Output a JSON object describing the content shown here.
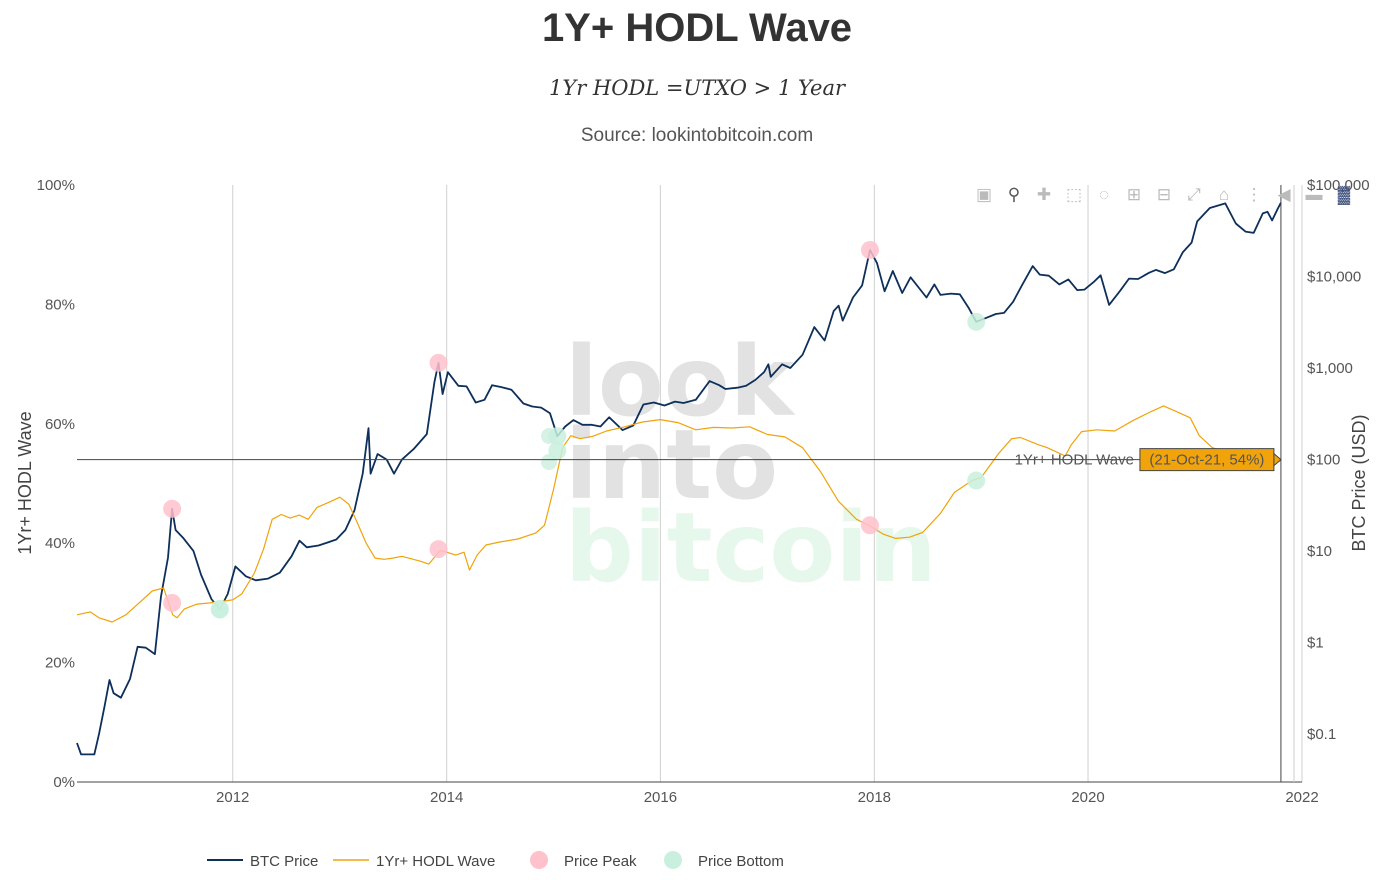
{
  "chart_data": {
    "type": "line",
    "title": "1Y+ HODL Wave",
    "subtitle": "1Yr HODL =UTXO > 1 Year",
    "source": "Source: lookintobitcoin.com",
    "y_left": {
      "title": "1Yr+ HODL Wave",
      "range": [
        0,
        100
      ],
      "ticks": [
        "0%",
        "20%",
        "40%",
        "60%",
        "80%",
        "100%"
      ]
    },
    "y_right": {
      "title": "BTC Price (USD)",
      "scale": "log",
      "range": [
        0.03,
        100000
      ],
      "ticks": [
        "$0.1",
        "$1",
        "$10",
        "$100",
        "$1,000",
        "$10,000",
        "$100,000"
      ]
    },
    "x": {
      "range": [
        "2010-07-18",
        "2022-01-01"
      ],
      "ticks": [
        "2012",
        "2014",
        "2016",
        "2018",
        "2020",
        "2022"
      ]
    },
    "grid": "x-only",
    "legend_position": "bottom-left",
    "series": [
      {
        "name": "BTC Price",
        "axis": "right",
        "color": "#0d2f5a",
        "points": [
          [
            "2010-07-18",
            0.08
          ],
          [
            "2010-08-01",
            0.06
          ],
          [
            "2010-09-15",
            0.06
          ],
          [
            "2010-10-01",
            0.1
          ],
          [
            "2010-10-20",
            0.2
          ],
          [
            "2010-11-06",
            0.39
          ],
          [
            "2010-11-20",
            0.28
          ],
          [
            "2010-12-15",
            0.25
          ],
          [
            "2011-01-15",
            0.4
          ],
          [
            "2011-02-10",
            0.9
          ],
          [
            "2011-03-10",
            0.88
          ],
          [
            "2011-04-10",
            0.75
          ],
          [
            "2011-05-01",
            3.2
          ],
          [
            "2011-05-25",
            8.5
          ],
          [
            "2011-06-08",
            29
          ],
          [
            "2011-06-20",
            17
          ],
          [
            "2011-07-15",
            14
          ],
          [
            "2011-08-20",
            10
          ],
          [
            "2011-09-15",
            5.5
          ],
          [
            "2011-10-20",
            3.0
          ],
          [
            "2011-11-18",
            2.3
          ],
          [
            "2011-12-15",
            3.4
          ],
          [
            "2012-01-10",
            6.8
          ],
          [
            "2012-02-15",
            5.3
          ],
          [
            "2012-03-20",
            4.8
          ],
          [
            "2012-05-01",
            5.0
          ],
          [
            "2012-06-10",
            5.8
          ],
          [
            "2012-07-20",
            8.8
          ],
          [
            "2012-08-16",
            13
          ],
          [
            "2012-09-10",
            11
          ],
          [
            "2012-10-20",
            11.5
          ],
          [
            "2012-11-20",
            12.4
          ],
          [
            "2012-12-20",
            13.4
          ],
          [
            "2013-01-20",
            17
          ],
          [
            "2013-02-20",
            28
          ],
          [
            "2013-03-20",
            70
          ],
          [
            "2013-04-09",
            220
          ],
          [
            "2013-04-16",
            70
          ],
          [
            "2013-05-10",
            115
          ],
          [
            "2013-06-10",
            100
          ],
          [
            "2013-07-05",
            70
          ],
          [
            "2013-08-01",
            100
          ],
          [
            "2013-09-10",
            130
          ],
          [
            "2013-10-25",
            190
          ],
          [
            "2013-11-20",
            700
          ],
          [
            "2013-12-04",
            1140
          ],
          [
            "2013-12-18",
            520
          ],
          [
            "2014-01-05",
            900
          ],
          [
            "2014-02-10",
            640
          ],
          [
            "2014-03-10",
            630
          ],
          [
            "2014-04-10",
            420
          ],
          [
            "2014-05-10",
            450
          ],
          [
            "2014-06-05",
            650
          ],
          [
            "2014-07-05",
            620
          ],
          [
            "2014-08-10",
            580
          ],
          [
            "2014-09-20",
            410
          ],
          [
            "2014-10-20",
            380
          ],
          [
            "2014-11-20",
            370
          ],
          [
            "2014-12-20",
            320
          ],
          [
            "2015-01-14",
            180
          ],
          [
            "2015-02-10",
            230
          ],
          [
            "2015-03-10",
            270
          ],
          [
            "2015-04-10",
            240
          ],
          [
            "2015-05-10",
            240
          ],
          [
            "2015-06-10",
            230
          ],
          [
            "2015-07-10",
            290
          ],
          [
            "2015-08-25",
            210
          ],
          [
            "2015-09-30",
            235
          ],
          [
            "2015-11-04",
            400
          ],
          [
            "2015-12-10",
            420
          ],
          [
            "2016-01-15",
            390
          ],
          [
            "2016-02-20",
            430
          ],
          [
            "2016-03-20",
            415
          ],
          [
            "2016-05-01",
            450
          ],
          [
            "2016-06-17",
            720
          ],
          [
            "2016-07-20",
            650
          ],
          [
            "2016-08-10",
            590
          ],
          [
            "2016-09-20",
            610
          ],
          [
            "2016-10-20",
            640
          ],
          [
            "2016-11-20",
            740
          ],
          [
            "2016-12-20",
            900
          ],
          [
            "2017-01-04",
            1100
          ],
          [
            "2017-01-12",
            800
          ],
          [
            "2017-02-20",
            1100
          ],
          [
            "2017-03-20",
            1000
          ],
          [
            "2017-05-01",
            1400
          ],
          [
            "2017-06-10",
            2800
          ],
          [
            "2017-07-15",
            2000
          ],
          [
            "2017-08-15",
            4200
          ],
          [
            "2017-09-01",
            4800
          ],
          [
            "2017-09-15",
            3300
          ],
          [
            "2017-10-20",
            5900
          ],
          [
            "2017-11-20",
            8000
          ],
          [
            "2017-12-17",
            19500
          ],
          [
            "2018-01-10",
            14000
          ],
          [
            "2018-02-05",
            6900
          ],
          [
            "2018-03-05",
            11500
          ],
          [
            "2018-04-06",
            6600
          ],
          [
            "2018-05-05",
            9800
          ],
          [
            "2018-06-28",
            5900
          ],
          [
            "2018-07-25",
            8200
          ],
          [
            "2018-08-15",
            6300
          ],
          [
            "2018-09-20",
            6500
          ],
          [
            "2018-10-20",
            6400
          ],
          [
            "2018-11-20",
            4500
          ],
          [
            "2018-12-15",
            3200
          ],
          [
            "2019-01-20",
            3550
          ],
          [
            "2019-02-20",
            3900
          ],
          [
            "2019-03-20",
            4000
          ],
          [
            "2019-04-20",
            5300
          ],
          [
            "2019-05-20",
            8000
          ],
          [
            "2019-06-26",
            13000
          ],
          [
            "2019-07-20",
            10500
          ],
          [
            "2019-08-20",
            10200
          ],
          [
            "2019-09-25",
            8200
          ],
          [
            "2019-10-26",
            9300
          ],
          [
            "2019-11-25",
            7100
          ],
          [
            "2019-12-20",
            7200
          ],
          [
            "2020-01-20",
            8700
          ],
          [
            "2020-02-13",
            10300
          ],
          [
            "2020-03-13",
            4900
          ],
          [
            "2020-04-20",
            7000
          ],
          [
            "2020-05-20",
            9500
          ],
          [
            "2020-06-20",
            9400
          ],
          [
            "2020-07-28",
            11000
          ],
          [
            "2020-08-20",
            11800
          ],
          [
            "2020-09-20",
            10900
          ],
          [
            "2020-10-20",
            12000
          ],
          [
            "2020-11-20",
            18500
          ],
          [
            "2020-12-20",
            23500
          ],
          [
            "2021-01-08",
            40000
          ],
          [
            "2021-02-20",
            56000
          ],
          [
            "2021-04-14",
            63000
          ],
          [
            "2021-05-20",
            38000
          ],
          [
            "2021-06-22",
            31000
          ],
          [
            "2021-07-20",
            30000
          ],
          [
            "2021-08-20",
            49000
          ],
          [
            "2021-09-05",
            51000
          ],
          [
            "2021-09-21",
            41000
          ],
          [
            "2021-10-10",
            55000
          ],
          [
            "2021-10-21",
            64000
          ]
        ]
      },
      {
        "name": "1Yr+ HODL Wave",
        "axis": "left",
        "color": "#f0a30a",
        "points": [
          [
            "2010-07-18",
            28
          ],
          [
            "2010-09-01",
            28.5
          ],
          [
            "2010-10-01",
            27.5
          ],
          [
            "2010-11-15",
            26.8
          ],
          [
            "2011-01-01",
            28
          ],
          [
            "2011-02-15",
            30
          ],
          [
            "2011-04-01",
            32
          ],
          [
            "2011-05-10",
            32.5
          ],
          [
            "2011-06-10",
            28
          ],
          [
            "2011-06-25",
            27.5
          ],
          [
            "2011-07-20",
            29
          ],
          [
            "2011-09-01",
            29.8
          ],
          [
            "2011-10-15",
            30
          ],
          [
            "2011-12-01",
            30.3
          ],
          [
            "2012-01-01",
            30.5
          ],
          [
            "2012-02-01",
            31.5
          ],
          [
            "2012-03-15",
            35
          ],
          [
            "2012-04-15",
            39
          ],
          [
            "2012-05-15",
            44
          ],
          [
            "2012-06-15",
            44.8
          ],
          [
            "2012-07-15",
            44.2
          ],
          [
            "2012-08-15",
            44.7
          ],
          [
            "2012-09-15",
            44
          ],
          [
            "2012-10-15",
            46
          ],
          [
            "2012-12-01",
            47
          ],
          [
            "2013-01-01",
            47.7
          ],
          [
            "2013-02-01",
            46.5
          ],
          [
            "2013-03-01",
            43.5
          ],
          [
            "2013-04-01",
            40
          ],
          [
            "2013-05-01",
            37.5
          ],
          [
            "2013-06-01",
            37.3
          ],
          [
            "2013-07-01",
            37.5
          ],
          [
            "2013-08-01",
            37.8
          ],
          [
            "2013-09-01",
            37.4
          ],
          [
            "2013-10-01",
            37
          ],
          [
            "2013-11-01",
            36.5
          ],
          [
            "2013-12-10",
            38.8
          ],
          [
            "2014-01-01",
            38.5
          ],
          [
            "2014-02-01",
            38
          ],
          [
            "2014-03-01",
            38.5
          ],
          [
            "2014-03-20",
            35.5
          ],
          [
            "2014-04-15",
            38
          ],
          [
            "2014-05-15",
            39.7
          ],
          [
            "2014-07-01",
            40.2
          ],
          [
            "2014-09-01",
            40.7
          ],
          [
            "2014-11-01",
            41.7
          ],
          [
            "2014-12-01",
            43
          ],
          [
            "2015-01-01",
            49
          ],
          [
            "2015-02-01",
            56
          ],
          [
            "2015-03-01",
            58
          ],
          [
            "2015-04-01",
            57.5
          ],
          [
            "2015-05-15",
            57.9
          ],
          [
            "2015-07-01",
            58.8
          ],
          [
            "2015-09-01",
            59.5
          ],
          [
            "2015-11-01",
            60.3
          ],
          [
            "2016-01-01",
            60.7
          ],
          [
            "2016-03-01",
            60.2
          ],
          [
            "2016-05-01",
            59
          ],
          [
            "2016-07-01",
            59.4
          ],
          [
            "2016-09-01",
            59.3
          ],
          [
            "2016-11-01",
            59.5
          ],
          [
            "2017-01-01",
            58.2
          ],
          [
            "2017-03-01",
            57.8
          ],
          [
            "2017-05-01",
            56
          ],
          [
            "2017-07-01",
            52
          ],
          [
            "2017-09-01",
            47
          ],
          [
            "2017-11-01",
            44
          ],
          [
            "2017-12-20",
            42.8
          ],
          [
            "2018-02-01",
            41.5
          ],
          [
            "2018-03-15",
            40.8
          ],
          [
            "2018-05-01",
            41
          ],
          [
            "2018-06-15",
            41.8
          ],
          [
            "2018-08-15",
            45
          ],
          [
            "2018-10-01",
            48.5
          ],
          [
            "2018-12-01",
            50.5
          ],
          [
            "2019-01-01",
            51
          ],
          [
            "2019-03-01",
            55
          ],
          [
            "2019-04-15",
            57.5
          ],
          [
            "2019-05-15",
            57.7
          ],
          [
            "2019-07-15",
            56.5
          ],
          [
            "2019-08-15",
            56
          ],
          [
            "2019-10-15",
            54.6
          ],
          [
            "2019-11-05",
            56.5
          ],
          [
            "2019-12-10",
            58.7
          ],
          [
            "2020-02-01",
            59
          ],
          [
            "2020-04-01",
            58.8
          ],
          [
            "2020-06-01",
            60.5
          ],
          [
            "2020-08-01",
            62
          ],
          [
            "2020-09-15",
            63
          ],
          [
            "2020-11-01",
            62
          ],
          [
            "2020-12-15",
            61
          ],
          [
            "2021-01-15",
            58
          ],
          [
            "2021-03-01",
            56
          ],
          [
            "2021-05-01",
            55
          ],
          [
            "2021-06-15",
            55.2
          ],
          [
            "2021-08-15",
            54
          ],
          [
            "2021-10-21",
            53.8
          ]
        ]
      },
      {
        "name": "Price Peak",
        "type": "scatter",
        "marker_color": "#ffc1cc",
        "points": [
          [
            "2011-06-08",
            29
          ],
          [
            "2013-12-04",
            1140
          ],
          [
            "2017-12-17",
            19500
          ],
          [
            "2011-06-08",
            30
          ],
          [
            "2013-12-04",
            39
          ],
          [
            "2017-12-17",
            43
          ]
        ],
        "axes": [
          "right",
          "right",
          "right",
          "left",
          "left",
          "left"
        ]
      },
      {
        "name": "Price Bottom",
        "type": "scatter",
        "marker_color": "#c9f0de",
        "points": [
          [
            "2011-11-18",
            2.3
          ],
          [
            "2015-01-14",
            180
          ],
          [
            "2018-12-15",
            3200
          ],
          [
            "2011-11-18",
            29
          ],
          [
            "2015-01-14",
            55.5
          ],
          [
            "2018-12-15",
            50.5
          ]
        ],
        "axes": [
          "right",
          "right",
          "right",
          "left",
          "left",
          "left"
        ]
      }
    ],
    "hover": {
      "date": "2021-10-21",
      "value": 54,
      "label": "(21-Oct-21, 54%)",
      "series_label": "1Yr+ HODL Wave"
    },
    "watermark": [
      "look",
      "into",
      "bitcoin"
    ]
  },
  "modebar": [
    "camera-icon",
    "zoom-icon",
    "pan-icon",
    "box-select-icon",
    "lasso-icon",
    "zoom-in-icon",
    "zoom-out-icon",
    "autoscale-icon",
    "reset-axes-icon",
    "spike-lines-icon",
    "hover-closest-icon",
    "hover-compare-icon",
    "plotly-logo-icon"
  ]
}
